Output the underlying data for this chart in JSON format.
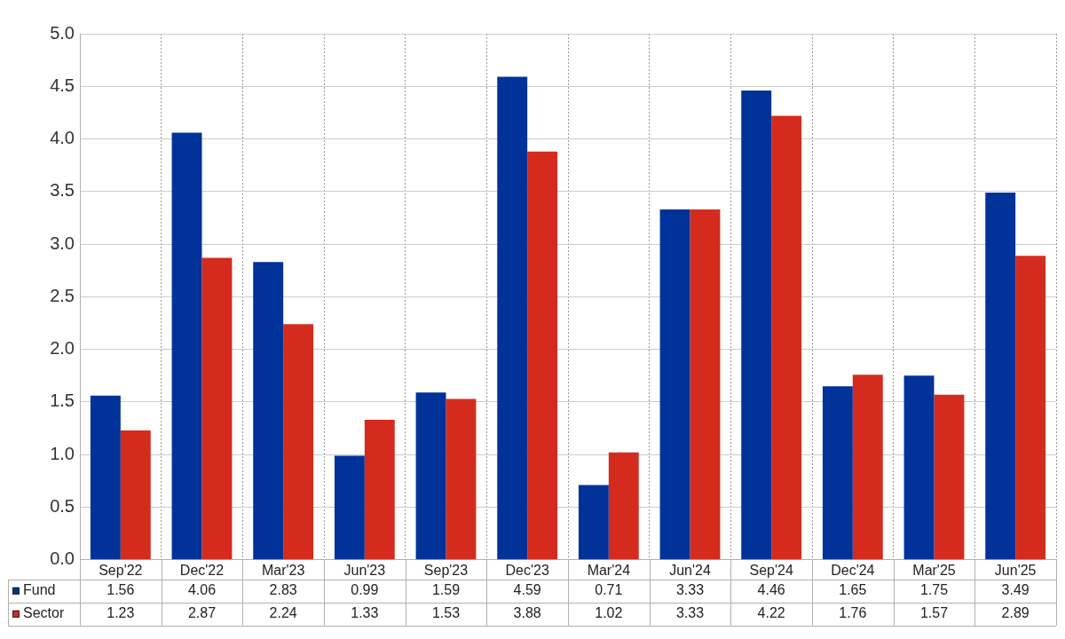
{
  "chart_data": {
    "type": "bar",
    "categories": [
      "Sep'22",
      "Dec'22",
      "Mar'23",
      "Jun'23",
      "Sep'23",
      "Dec'23",
      "Mar'24",
      "Jun'24",
      "Sep'24",
      "Dec'24",
      "Mar'25",
      "Jun'25"
    ],
    "series": [
      {
        "name": "Fund",
        "color": "#003299",
        "values": [
          1.56,
          4.06,
          2.83,
          0.99,
          1.59,
          4.59,
          0.71,
          3.33,
          4.46,
          1.65,
          1.75,
          3.49
        ]
      },
      {
        "name": "Sector",
        "color": "#d52b1e",
        "values": [
          1.23,
          2.87,
          2.24,
          1.33,
          1.53,
          3.88,
          1.02,
          3.33,
          4.22,
          1.76,
          1.57,
          2.89
        ]
      }
    ],
    "ylim": [
      0,
      5
    ],
    "yticks": [
      {
        "value": 0,
        "label": "0.0"
      },
      {
        "value": 0.5,
        "label": "0.5"
      },
      {
        "value": 1,
        "label": "1.0"
      },
      {
        "value": 1.5,
        "label": "1.5"
      },
      {
        "value": 2,
        "label": "2.0"
      },
      {
        "value": 2.5,
        "label": "2.5"
      },
      {
        "value": 3,
        "label": "3.0"
      },
      {
        "value": 3.5,
        "label": "3.5"
      },
      {
        "value": 4,
        "label": "4.0"
      },
      {
        "value": 4.5,
        "label": "4.5"
      },
      {
        "value": 5,
        "label": "5.0"
      }
    ],
    "grid": true,
    "legend": "bottom",
    "data_labels": true
  }
}
